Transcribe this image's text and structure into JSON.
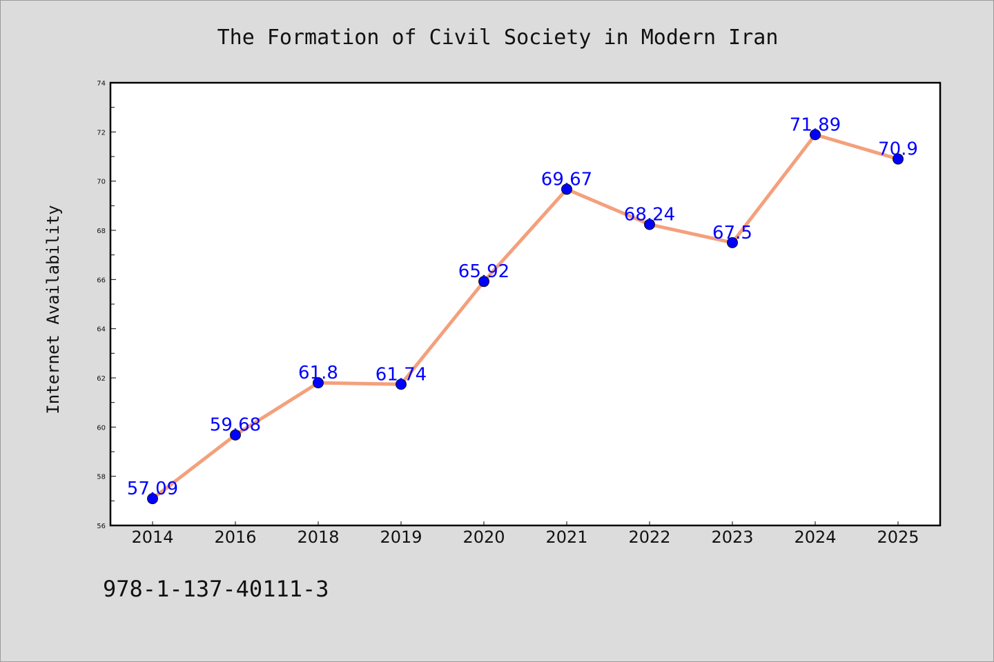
{
  "chart_data": {
    "type": "line",
    "title": "The Formation of Civil Society in Modern Iran",
    "xlabel": "",
    "ylabel": "Internet Availability",
    "categories": [
      "2014",
      "2016",
      "2018",
      "2019",
      "2020",
      "2021",
      "2022",
      "2023",
      "2024",
      "2025"
    ],
    "values": [
      57.09,
      59.68,
      61.8,
      61.74,
      65.92,
      69.67,
      68.24,
      67.5,
      71.89,
      70.9
    ],
    "data_labels": [
      "57.09",
      "59.68",
      "61.8",
      "61.74",
      "65.92",
      "69.67",
      "68.24",
      "67.5",
      "71.89",
      "70.9"
    ],
    "ylim": [
      56,
      74
    ],
    "yticks": [
      "56",
      "58",
      "60",
      "62",
      "64",
      "66",
      "68",
      "70",
      "72",
      "74"
    ],
    "grid": false,
    "legend": "none",
    "colors": {
      "line": "#f4a07c",
      "marker": "#0000ff",
      "marker_edge": "#111111",
      "label": "#0000ff",
      "plot_background": "#ffffff",
      "figure_background": "#dcdcdc"
    }
  },
  "footer": {
    "code": "978-1-137-40111-3"
  }
}
